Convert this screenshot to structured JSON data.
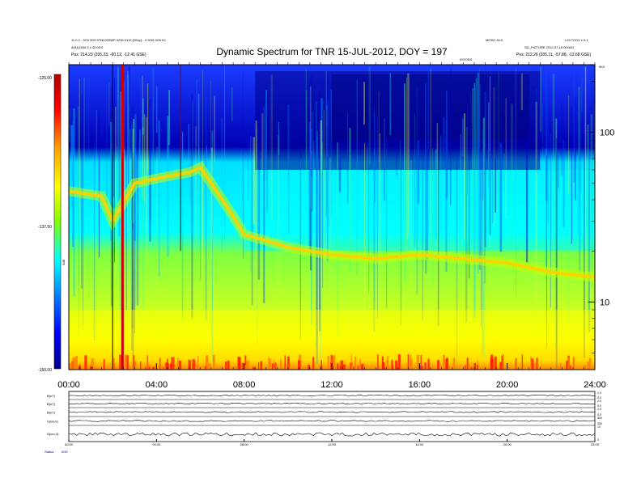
{
  "chart_data": [
    {
      "type": "heatmap",
      "title": "Dynamic Spectrum for TNR 15-JUL-2012, DOY = 197",
      "header_left": [
        "11 0.2 - 3O0 3O0 0TNIO0SWP 0230 0110 [0Sby] - JI 0O0 0O0 0C",
        "A0fJ(1500:3 ± 00:00:0",
        "Pos:     214.23 (205.23, -60.12, -12.41 GSE)"
      ],
      "header_right": [
        "MOSO 34:0",
        "L33 TOO1 ± 0:1",
        "SG_PICTURE 2012-07-16 001631",
        "Pos:     212.26 (205.11, -57.88, -12.68 GSE)"
      ],
      "marker_label": "0SY0SS",
      "corner_label": "0K0",
      "x_ticks": [
        "00:00",
        "04:00",
        "08:00",
        "12:00",
        "16:00",
        "20:00",
        "24:00"
      ],
      "xlim": [
        0,
        24
      ],
      "y_axis": {
        "scale": "log",
        "ticks": [
          "100",
          "10"
        ],
        "ylim": [
          4,
          250
        ]
      },
      "colorbar": {
        "ticks": [
          "-125.00",
          "-137.50",
          "-150.00"
        ],
        "range": [
          -150,
          -125
        ],
        "label": "0dB",
        "colors": [
          "#00008c",
          "#0000ff",
          "#0080ff",
          "#00ffff",
          "#80ff00",
          "#ffff00",
          "#ffa000",
          "#ff0000",
          "#b40000"
        ]
      },
      "bands": [
        {
          "name": "background_dark",
          "note": "strong dark-blue region above ~60 kHz between ~08:30 and ~21:30"
        },
        {
          "name": "cyan_mid",
          "note": "cyan band between ~20 and ~60 kHz"
        },
        {
          "name": "green_low",
          "note": "green band between ~8 and ~20 kHz"
        },
        {
          "name": "yellow_base",
          "note": "yellow base below ~8 kHz with red bursts near bottom"
        }
      ],
      "ridge": {
        "note": "yellow-orange plasma-line ridge",
        "points": [
          [
            0.0,
            45
          ],
          [
            1.5,
            42
          ],
          [
            2.0,
            30
          ],
          [
            3.0,
            50
          ],
          [
            4.5,
            55
          ],
          [
            5.5,
            58
          ],
          [
            6.0,
            62
          ],
          [
            6.5,
            50
          ],
          [
            7.0,
            40
          ],
          [
            7.5,
            32
          ],
          [
            8.0,
            25
          ],
          [
            9.0,
            23
          ],
          [
            10.0,
            21
          ],
          [
            11.0,
            20
          ],
          [
            12.0,
            19
          ],
          [
            14.0,
            18
          ],
          [
            16.0,
            19
          ],
          [
            18.0,
            18
          ],
          [
            20.0,
            17
          ],
          [
            22.0,
            15
          ],
          [
            24.0,
            14
          ]
        ]
      },
      "vertical_lines": [
        {
          "t": 2.0,
          "color": "#000000"
        },
        {
          "t": 5.1,
          "color": "#8a0000"
        },
        {
          "t": 2.45,
          "color": "#cc0000"
        }
      ]
    },
    {
      "type": "line",
      "title": "",
      "panels": [
        {
          "label": "B(nT)",
          "right_ticks": [
            "2.0",
            "0.0"
          ]
        },
        {
          "label": "B(nT)",
          "right_ticks": [
            "2.0",
            "0.0"
          ]
        },
        {
          "label": "B(nT)",
          "right_ticks": [
            "2.0",
            "0.0"
          ]
        },
        {
          "label": "V(km/s)",
          "right_ticks": [
            "500",
            "300"
          ]
        },
        {
          "label": "N(cm-3)",
          "right_ticks": [
            "10",
            "0"
          ]
        }
      ],
      "x_ticks": [
        "00:00",
        "04:00",
        "08:00",
        "12:00",
        "16:00",
        "20:00",
        "24:00"
      ],
      "footer_label": "Status",
      "footer_value": "0OK"
    }
  ]
}
